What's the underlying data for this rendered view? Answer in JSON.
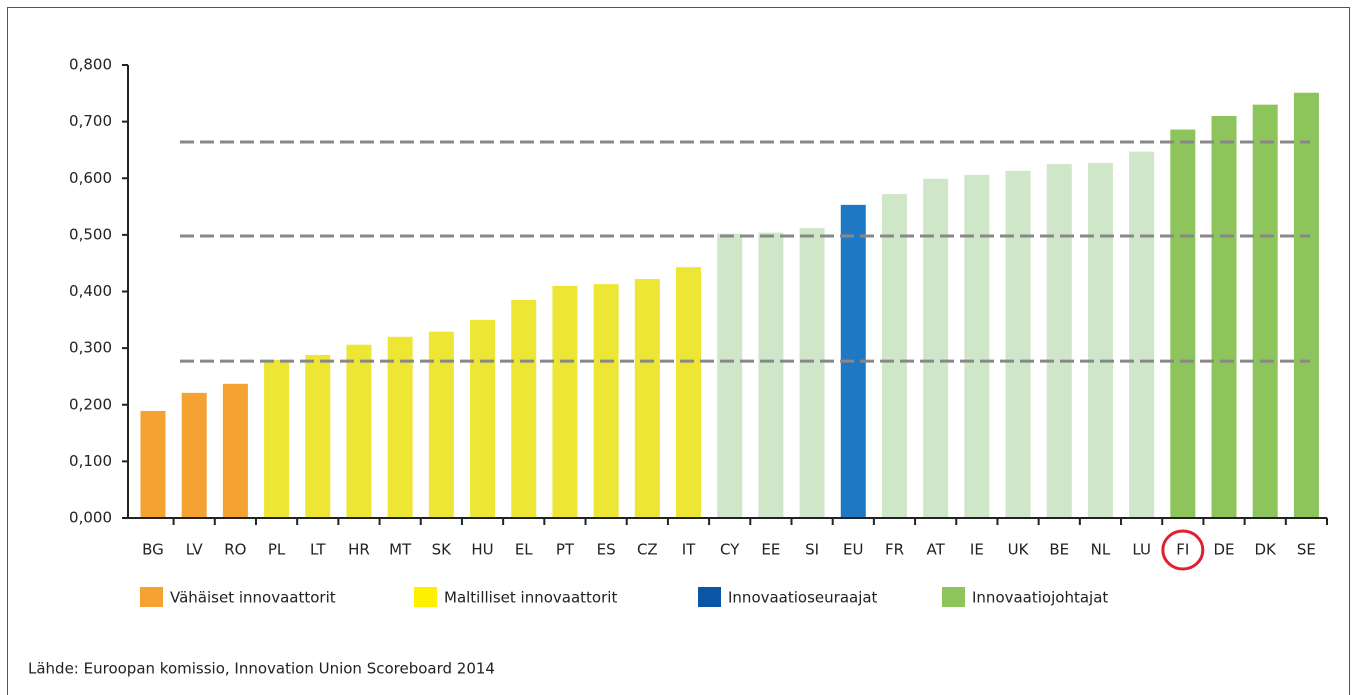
{
  "chart_data": {
    "type": "bar",
    "categories": [
      "BG",
      "LV",
      "RO",
      "PL",
      "LT",
      "HR",
      "MT",
      "SK",
      "HU",
      "EL",
      "PT",
      "ES",
      "CZ",
      "IT",
      "CY",
      "EE",
      "SI",
      "EU",
      "FR",
      "AT",
      "IE",
      "UK",
      "BE",
      "NL",
      "LU",
      "FI",
      "DE",
      "DK",
      "SE"
    ],
    "values": [
      0.189,
      0.221,
      0.237,
      0.279,
      0.288,
      0.306,
      0.32,
      0.329,
      0.35,
      0.385,
      0.41,
      0.413,
      0.422,
      0.443,
      0.502,
      0.504,
      0.512,
      0.553,
      0.572,
      0.599,
      0.606,
      0.613,
      0.625,
      0.627,
      0.647,
      0.686,
      0.71,
      0.73,
      0.751
    ],
    "colors": [
      "#f4a232",
      "#f4a232",
      "#f4a232",
      "#ede634",
      "#ede634",
      "#ede634",
      "#ede634",
      "#ede634",
      "#ede634",
      "#ede634",
      "#ede634",
      "#ede634",
      "#ede634",
      "#ede634",
      "#cfe7c8",
      "#cfe7c8",
      "#cfe7c8",
      "#1f78c4",
      "#cfe7c8",
      "#cfe7c8",
      "#cfe7c8",
      "#cfe7c8",
      "#cfe7c8",
      "#cfe7c8",
      "#cfe7c8",
      "#8dc45b",
      "#8dc45b",
      "#8dc45b",
      "#8dc45b"
    ],
    "ylim": [
      0,
      0.8
    ],
    "yticks": [
      {
        "value": 0,
        "label": "0,000"
      },
      {
        "value": 0.1,
        "label": "0,100"
      },
      {
        "value": 0.2,
        "label": "0,200"
      },
      {
        "value": 0.3,
        "label": "0,300"
      },
      {
        "value": 0.4,
        "label": "0,400"
      },
      {
        "value": 0.5,
        "label": "0,500"
      },
      {
        "value": 0.6,
        "label": "0,600"
      },
      {
        "value": 0.7,
        "label": "0,700"
      },
      {
        "value": 0.8,
        "label": "0,800"
      }
    ],
    "reference_lines": [
      0.277,
      0.498,
      0.664
    ],
    "highlight_index": 25,
    "legend": [
      {
        "name": "Vähäiset innovaattorit",
        "color": "#f4a232"
      },
      {
        "name": "Maltilliset innovaattorit",
        "color": "#fff000"
      },
      {
        "name": "Innovaatioseuraajat",
        "color": "#0a56a4"
      },
      {
        "name": "Innovaatiojohtajat",
        "color": "#8dc45b"
      }
    ],
    "source": "Lähde: Euroopan komissio, Innovation Union Scoreboard 2014"
  }
}
